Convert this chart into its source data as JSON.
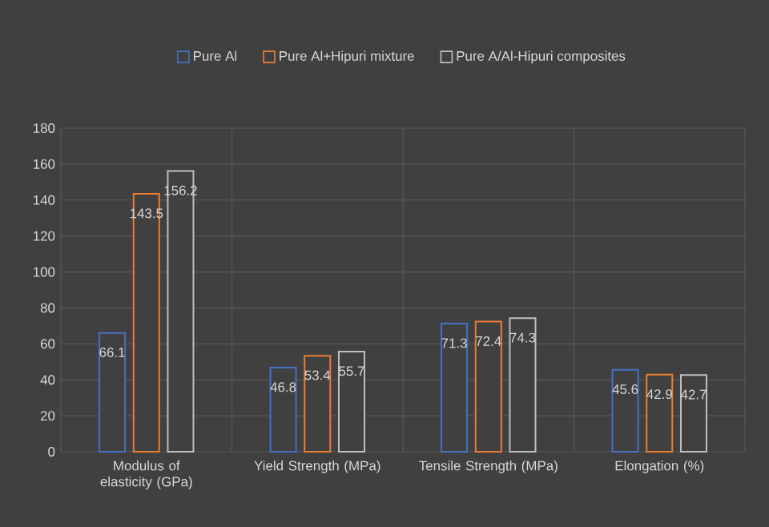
{
  "chart_data": {
    "type": "bar",
    "categories": [
      "Modulus of elasticity (GPa)",
      "Yield Strength (MPa)",
      "Tensile Strength (MPa)",
      "Elongation (%)"
    ],
    "series": [
      {
        "name": "Pure Al",
        "color": "#4472c4",
        "values": [
          66.1,
          46.8,
          71.3,
          45.6
        ],
        "value_labels": [
          "66.1",
          "46.8",
          "71.3",
          "45.6"
        ]
      },
      {
        "name": "Pure Al+Hipuri mixture",
        "color": "#ed7d31",
        "values": [
          143.5,
          53.4,
          72.4,
          42.9
        ],
        "value_labels": [
          "143.5",
          "53.4",
          "72.4",
          "42.9"
        ]
      },
      {
        "name": "Pure A/Al-Hipuri composites",
        "color": "#bfbfbf",
        "values": [
          156.2,
          55.7,
          74.3,
          42.7
        ],
        "value_labels": [
          "156.2",
          "55.7",
          "74.3",
          "42.7"
        ]
      }
    ],
    "ylim": [
      0,
      180
    ],
    "yticks": [
      0,
      20,
      40,
      60,
      80,
      100,
      120,
      140,
      160,
      180
    ],
    "grid": true,
    "legend": "top"
  }
}
